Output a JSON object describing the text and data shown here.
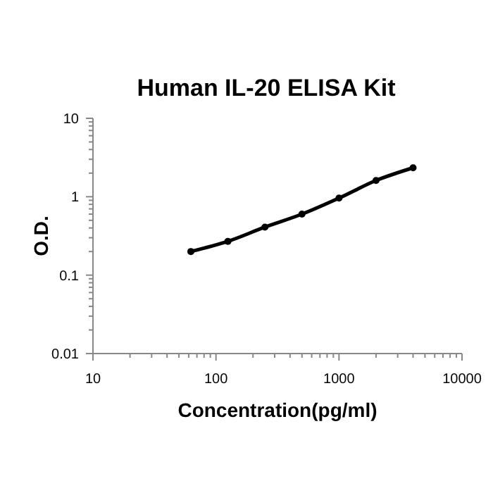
{
  "chart_data": {
    "type": "line",
    "title": "Human IL-20 ELISA Kit",
    "xlabel": "Concentration(pg/ml)",
    "ylabel": "O.D.",
    "log": "xy",
    "marker": "circle",
    "line_style": "solid",
    "x": [
      62.5,
      125,
      250,
      500,
      1000,
      2000,
      4000
    ],
    "series": [
      {
        "color": "#000000",
        "values": [
          0.2,
          0.27,
          0.41,
          0.6,
          0.96,
          1.61,
          2.34
        ]
      }
    ],
    "xlim": [
      10,
      10000
    ],
    "ylim": [
      0.01,
      10
    ],
    "xticks": [
      10,
      {
        "value": 20,
        "label": null
      },
      {
        "value": 30,
        "label": null
      },
      {
        "value": 40,
        "label": null
      },
      {
        "value": 50,
        "label": null
      },
      {
        "value": 60,
        "label": null
      },
      {
        "value": 70,
        "label": null
      },
      {
        "value": 80,
        "label": null
      },
      {
        "value": 90,
        "label": null
      },
      100,
      {
        "value": 200,
        "label": null
      },
      {
        "value": 300,
        "label": null
      },
      {
        "value": 400,
        "label": null
      },
      {
        "value": 500,
        "label": null
      },
      {
        "value": 600,
        "label": null
      },
      {
        "value": 700,
        "label": null
      },
      {
        "value": 800,
        "label": null
      },
      {
        "value": 900,
        "label": null
      },
      1000,
      {
        "value": 2000,
        "label": null
      },
      {
        "value": 3000,
        "label": null
      },
      {
        "value": 4000,
        "label": null
      },
      {
        "value": 5000,
        "label": null
      },
      {
        "value": 6000,
        "label": null
      },
      {
        "value": 7000,
        "label": null
      },
      {
        "value": 8000,
        "label": null
      },
      {
        "value": 9000,
        "label": null
      },
      10000
    ],
    "yticks": [
      0.01,
      {
        "value": 0.02,
        "label": null
      },
      {
        "value": 0.03,
        "label": null
      },
      {
        "value": 0.04,
        "label": null
      },
      {
        "value": 0.05,
        "label": null
      },
      {
        "value": 0.06,
        "label": null
      },
      {
        "value": 0.07,
        "label": null
      },
      {
        "value": 0.08,
        "label": null
      },
      {
        "value": 0.09,
        "label": null
      },
      0.1,
      {
        "value": 0.2,
        "label": null
      },
      {
        "value": 0.3,
        "label": null
      },
      {
        "value": 0.4,
        "label": null
      },
      {
        "value": 0.5,
        "label": null
      },
      {
        "value": 0.6,
        "label": null
      },
      {
        "value": 0.7,
        "label": null
      },
      {
        "value": 0.8,
        "label": null
      },
      {
        "value": 0.9,
        "label": null
      },
      1,
      {
        "value": 2,
        "label": null
      },
      {
        "value": 3,
        "label": null
      },
      {
        "value": 4,
        "label": null
      },
      {
        "value": 5,
        "label": null
      },
      {
        "value": 6,
        "label": null
      },
      {
        "value": 7,
        "label": null
      },
      {
        "value": 8,
        "label": null
      },
      {
        "value": 9,
        "label": null
      },
      10
    ]
  }
}
